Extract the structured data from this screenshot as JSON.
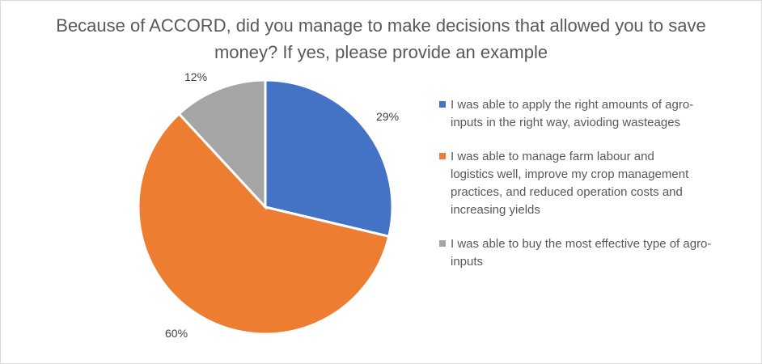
{
  "chart_data": {
    "type": "pie",
    "title": "Because of ACCORD, did you manage to make decisions that allowed you to save money? If yes, please provide an example",
    "legend_position": "right",
    "slices": [
      {
        "label": "I was able to apply the right amounts of agro-inputs in the right way, avioding wasteages",
        "value": 29,
        "display": "29%",
        "color": "#4472C4"
      },
      {
        "label": "I was able to manage farm labour and logistics well, improve my crop management practices, and reduced operation costs and increasing yields",
        "value": 60,
        "display": "60%",
        "color": "#ED7D31"
      },
      {
        "label": "I was able to buy the most effective type of agro-inputs",
        "value": 12,
        "display": "12%",
        "color": "#A5A5A5"
      }
    ]
  }
}
